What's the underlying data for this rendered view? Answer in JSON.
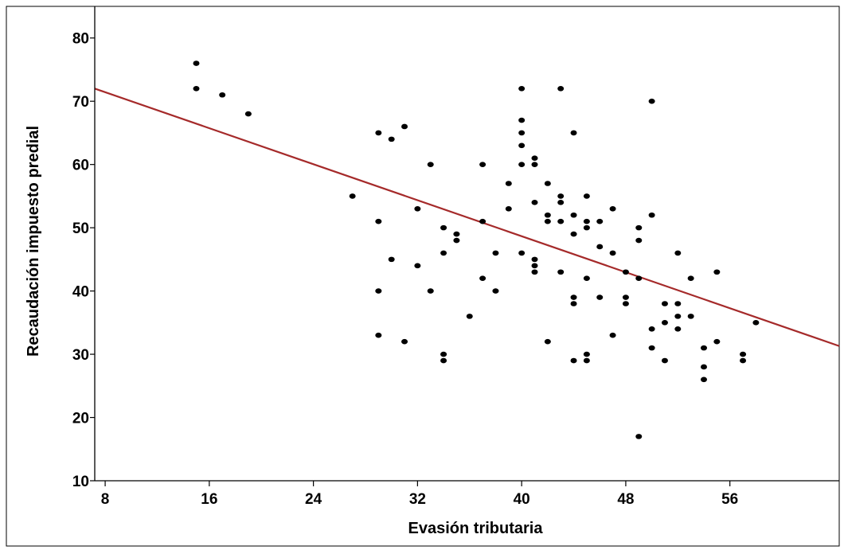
{
  "chart_data": {
    "type": "scatter",
    "title": "",
    "xlabel": "Evasión tributaria",
    "ylabel": "Recaudación impuesto predial",
    "xlim": [
      7.2,
      64.4
    ],
    "ylim": [
      10,
      85
    ],
    "xticks": [
      8,
      16,
      24,
      32,
      40,
      48,
      56
    ],
    "yticks": [
      10,
      20,
      30,
      40,
      50,
      60,
      70,
      80
    ],
    "grid": false,
    "colors": {
      "points": "#000000",
      "fit_line": "#a52a2a",
      "axis": "#000000"
    },
    "fit_line": {
      "x": [
        7.2,
        64.4
      ],
      "y": [
        72,
        31.3
      ]
    },
    "points": [
      [
        15,
        76
      ],
      [
        15,
        72
      ],
      [
        17,
        71
      ],
      [
        19,
        68
      ],
      [
        27,
        55
      ],
      [
        29,
        65
      ],
      [
        29,
        51
      ],
      [
        29,
        40
      ],
      [
        29,
        33
      ],
      [
        30,
        64
      ],
      [
        30,
        45
      ],
      [
        31,
        66
      ],
      [
        31,
        32
      ],
      [
        32,
        53
      ],
      [
        32,
        44
      ],
      [
        33,
        60
      ],
      [
        33,
        40
      ],
      [
        34,
        50
      ],
      [
        34,
        46
      ],
      [
        34,
        30
      ],
      [
        34,
        29
      ],
      [
        35,
        49
      ],
      [
        35,
        48
      ],
      [
        36,
        36
      ],
      [
        37,
        60
      ],
      [
        37,
        51
      ],
      [
        37,
        42
      ],
      [
        38,
        46
      ],
      [
        38,
        40
      ],
      [
        39,
        57
      ],
      [
        39,
        53
      ],
      [
        40,
        72
      ],
      [
        40,
        67
      ],
      [
        40,
        65
      ],
      [
        40,
        63
      ],
      [
        40,
        60
      ],
      [
        40,
        46
      ],
      [
        41,
        61
      ],
      [
        41,
        60
      ],
      [
        41,
        54
      ],
      [
        41,
        45
      ],
      [
        41,
        44
      ],
      [
        41,
        43
      ],
      [
        42,
        57
      ],
      [
        42,
        52
      ],
      [
        42,
        51
      ],
      [
        42,
        32
      ],
      [
        43,
        72
      ],
      [
        43,
        55
      ],
      [
        43,
        54
      ],
      [
        43,
        51
      ],
      [
        43,
        43
      ],
      [
        44,
        65
      ],
      [
        44,
        52
      ],
      [
        44,
        49
      ],
      [
        44,
        39
      ],
      [
        44,
        38
      ],
      [
        44,
        29
      ],
      [
        45,
        55
      ],
      [
        45,
        51
      ],
      [
        45,
        50
      ],
      [
        45,
        42
      ],
      [
        45,
        30
      ],
      [
        45,
        29
      ],
      [
        46,
        51
      ],
      [
        46,
        47
      ],
      [
        46,
        39
      ],
      [
        47,
        53
      ],
      [
        47,
        46
      ],
      [
        47,
        33
      ],
      [
        48,
        43
      ],
      [
        48,
        39
      ],
      [
        48,
        38
      ],
      [
        49,
        50
      ],
      [
        49,
        48
      ],
      [
        49,
        42
      ],
      [
        49,
        17
      ],
      [
        50,
        70
      ],
      [
        50,
        52
      ],
      [
        50,
        34
      ],
      [
        50,
        31
      ],
      [
        51,
        38
      ],
      [
        51,
        35
      ],
      [
        51,
        29
      ],
      [
        52,
        46
      ],
      [
        52,
        38
      ],
      [
        52,
        36
      ],
      [
        52,
        34
      ],
      [
        53,
        42
      ],
      [
        53,
        36
      ],
      [
        54,
        31
      ],
      [
        54,
        28
      ],
      [
        54,
        26
      ],
      [
        55,
        43
      ],
      [
        55,
        32
      ],
      [
        57,
        30
      ],
      [
        57,
        29
      ],
      [
        58,
        35
      ]
    ]
  }
}
